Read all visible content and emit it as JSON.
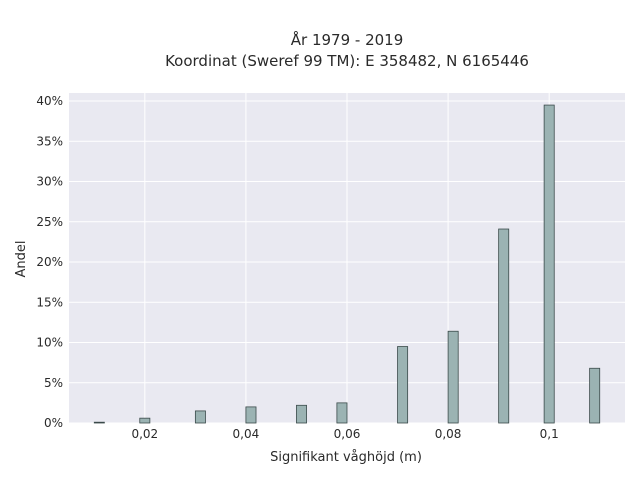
{
  "chart_data": {
    "type": "bar",
    "title_line1": "År 1979 - 2019",
    "title_line2": "Koordinat (Sweref 99 TM): E 358482, N 6165446",
    "xlabel": "Signifikant våghöjd (m)",
    "ylabel": "Andel",
    "x_ticks": [
      {
        "value": 0.02,
        "label": "0,02"
      },
      {
        "value": 0.04,
        "label": "0,04"
      },
      {
        "value": 0.06,
        "label": "0,06"
      },
      {
        "value": 0.08,
        "label": "0,08"
      },
      {
        "value": 0.1,
        "label": "0,1"
      }
    ],
    "y_ticks": [
      {
        "value": 0,
        "label": "0%"
      },
      {
        "value": 5,
        "label": "5%"
      },
      {
        "value": 10,
        "label": "10%"
      },
      {
        "value": 15,
        "label": "15%"
      },
      {
        "value": 20,
        "label": "20%"
      },
      {
        "value": 25,
        "label": "25%"
      },
      {
        "value": 30,
        "label": "30%"
      },
      {
        "value": 35,
        "label": "35%"
      },
      {
        "value": 40,
        "label": "40%"
      }
    ],
    "xlim": [
      0.005,
      0.115
    ],
    "ylim": [
      0,
      41
    ],
    "bar_width": 0.002,
    "x": [
      0.011,
      0.02,
      0.031,
      0.041,
      0.051,
      0.059,
      0.071,
      0.081,
      0.091,
      0.1,
      0.109
    ],
    "values": [
      0.1,
      0.6,
      1.5,
      2.0,
      2.2,
      2.5,
      9.5,
      11.4,
      24.1,
      39.5,
      6.8
    ],
    "grid": true,
    "colors": {
      "bar_fill": "#9bb3b3",
      "bar_stroke": "#3a4a4a",
      "plot_bg": "#e9e9f1",
      "grid": "#ffffff"
    }
  }
}
